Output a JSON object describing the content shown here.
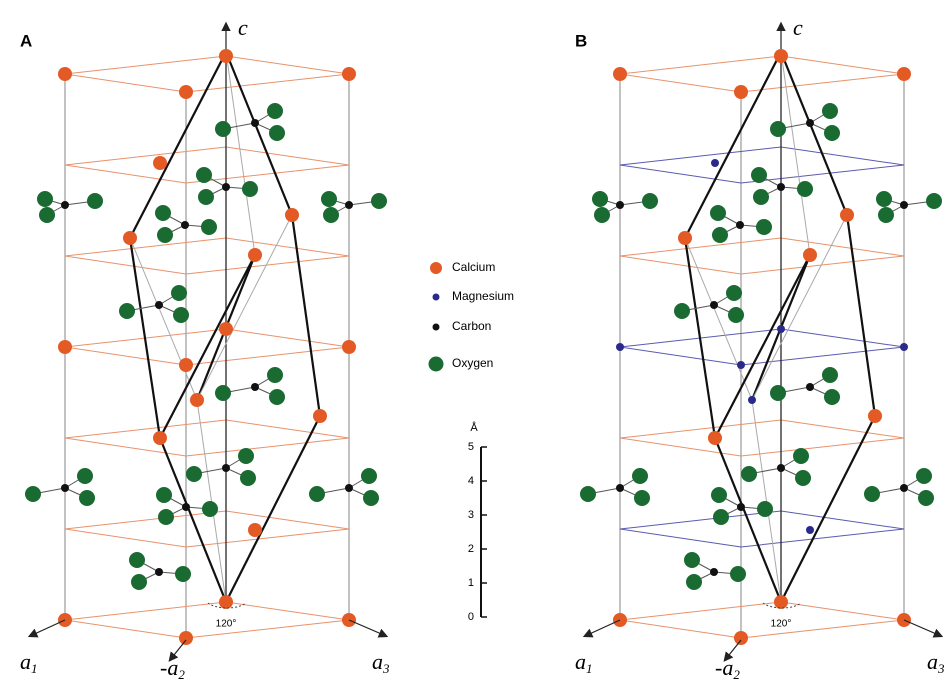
{
  "panels": [
    {
      "label": "A"
    },
    {
      "label": "B"
    }
  ],
  "axes": {
    "c": "c",
    "a1": {
      "symbol": "a",
      "subscript": "1"
    },
    "a3": {
      "symbol": "a",
      "subscript": "3"
    },
    "a2": {
      "symbol": "-a",
      "subscript": "2"
    },
    "angle": "120°"
  },
  "legend": [
    {
      "label": "Calcium"
    },
    {
      "label": "Magnesium"
    },
    {
      "label": "Carbon"
    },
    {
      "label": "Oxygen"
    }
  ],
  "scale": {
    "unit": "Å",
    "ticks": [
      "0",
      "1",
      "2",
      "3",
      "4",
      "5"
    ]
  }
}
